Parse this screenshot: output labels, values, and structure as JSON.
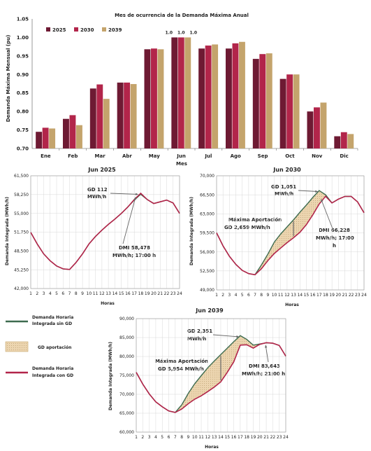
{
  "colors": {
    "c2025": "#6e1a33",
    "c2030": "#b2254a",
    "c2039": "#c4a46c",
    "green": "#3d6b4f",
    "red": "#b2254a",
    "fill": "#ecd5b0"
  },
  "chart_data": [
    {
      "type": "bar",
      "title": "Mes de ocurrencia de la Demanda Máxima Anual",
      "ylabel": "Demanda Máxima Mensual (pu)",
      "xlabel": "Mes",
      "ylim": [
        0.7,
        1.05
      ],
      "yticks": [
        "0.70",
        "0.75",
        "0.80",
        "0.85",
        "0.90",
        "0.95",
        "1.00",
        "1.05"
      ],
      "categories": [
        "Ene",
        "Feb",
        "Mar",
        "Abr",
        "May",
        "Jun",
        "Jul",
        "Ago",
        "Sep",
        "Oct",
        "Nov",
        "Dic"
      ],
      "series": [
        {
          "name": "2025",
          "values": [
            0.745,
            0.78,
            0.862,
            0.878,
            0.968,
            1.0,
            0.97,
            0.97,
            0.942,
            0.888,
            0.8,
            0.733
          ]
        },
        {
          "name": "2030",
          "values": [
            0.756,
            0.79,
            0.873,
            0.878,
            0.97,
            1.0,
            0.978,
            0.984,
            0.955,
            0.9,
            0.811,
            0.744
          ]
        },
        {
          "name": "2039",
          "values": [
            0.754,
            0.763,
            0.834,
            0.874,
            0.968,
            1.0,
            0.981,
            0.988,
            0.957,
            0.9,
            0.824,
            0.739
          ]
        }
      ],
      "data_labels": [
        "1.0",
        "1.0",
        "1.0"
      ],
      "legend": "top-left"
    },
    {
      "type": "line",
      "title": "Jun 2025",
      "ylabel": "Demanda Integrada (MWh/h)",
      "xlabel": "Horas",
      "x": [
        1,
        2,
        3,
        4,
        5,
        6,
        7,
        8,
        9,
        10,
        11,
        12,
        13,
        14,
        15,
        16,
        17,
        18,
        19,
        20,
        21,
        22,
        23,
        24
      ],
      "ylim": [
        42000,
        61500
      ],
      "yticks": [
        "42,000",
        "45,250",
        "48,500",
        "51,750",
        "55,000",
        "58,250",
        "61,500"
      ],
      "series": [
        {
          "values": [
            51700,
            49700,
            48000,
            46800,
            45900,
            45400,
            45300,
            46500,
            48000,
            49700,
            51000,
            52100,
            53100,
            54000,
            55000,
            56100,
            57300,
            58300,
            57400,
            56700,
            57000,
            57300,
            56800,
            55000
          ]
        },
        {
          "values": [
            51700,
            49700,
            48000,
            46800,
            45900,
            45400,
            45300,
            46500,
            48000,
            49700,
            51000,
            52100,
            53100,
            54000,
            55000,
            56100,
            57400,
            58478,
            57400,
            56700,
            57000,
            57300,
            56800,
            55000
          ]
        }
      ],
      "annotations": [
        {
          "text": "GD 112",
          "text2": "MWh/h"
        },
        {
          "text": "DMI 58,478",
          "text2": "MWh/h;  17:00 h"
        }
      ]
    },
    {
      "type": "line",
      "title": "Jun 2030",
      "ylabel": "Demanda Integrada (MWh/h)",
      "xlabel": "Horas",
      "x": [
        1,
        2,
        3,
        4,
        5,
        6,
        7,
        8,
        9,
        10,
        11,
        12,
        13,
        14,
        15,
        16,
        17,
        18,
        19,
        20,
        21,
        22,
        23,
        24
      ],
      "ylim": [
        49000,
        70000
      ],
      "yticks": [
        "49,000",
        "52,500",
        "56,000",
        "59,500",
        "63,000",
        "66,500",
        "70,000"
      ],
      "series": [
        {
          "name": "Demanda Horaria Integrada sin GD",
          "values": [
            59500,
            57100,
            55200,
            53700,
            52600,
            52000,
            51800,
            53600,
            55600,
            57800,
            59300,
            60600,
            61900,
            63300,
            64600,
            66000,
            67279,
            66500,
            65000,
            65700,
            66200,
            66200,
            65200,
            63200
          ]
        },
        {
          "name": "Demanda Horaria Integrada con GD",
          "values": [
            59500,
            57100,
            55200,
            53700,
            52600,
            52000,
            51800,
            52900,
            54400,
            55700,
            56700,
            57700,
            58600,
            59600,
            61000,
            62800,
            64800,
            66228,
            65000,
            65700,
            66200,
            66200,
            65200,
            63200
          ]
        }
      ],
      "annotations": [
        {
          "text": "GD 1,051",
          "text2": "MWh/h"
        },
        {
          "text": "Máxima Aportación",
          "text2": "GD 2,659 MWh/h"
        },
        {
          "text": "DMI 66,228",
          "text2": "MWh/h; 17:00",
          "text3": "h"
        }
      ]
    },
    {
      "type": "line",
      "title": "Jun 2039",
      "ylabel": "Demanda Integrada (MWh/h)",
      "xlabel": "Horas",
      "x": [
        1,
        2,
        3,
        4,
        5,
        6,
        7,
        8,
        9,
        10,
        11,
        12,
        13,
        14,
        15,
        16,
        17,
        18,
        19,
        20,
        21,
        22,
        23,
        24
      ],
      "ylim": [
        60000,
        90000
      ],
      "yticks": [
        "60,000",
        "65,000",
        "70,000",
        "75,000",
        "80,000",
        "85,000",
        "90,000"
      ],
      "series": [
        {
          "name": "Demanda Horaria Integrada sin GD",
          "values": [
            75800,
            72700,
            70100,
            68000,
            66700,
            65600,
            65200,
            67200,
            70200,
            72800,
            74900,
            77000,
            78800,
            80500,
            82200,
            83900,
            85500,
            84500,
            83000,
            83300,
            83600,
            83500,
            82900,
            80100
          ]
        },
        {
          "name": "Demanda Horaria Integrada con GD",
          "values": [
            75800,
            72700,
            70100,
            68000,
            66700,
            65600,
            65200,
            66100,
            67500,
            68700,
            69600,
            70700,
            71900,
            73300,
            75800,
            78600,
            83000,
            83100,
            82200,
            83200,
            83643,
            83500,
            82900,
            80100
          ]
        }
      ],
      "annotations": [
        {
          "text": "GD 2,351",
          "text2": "MWh/h"
        },
        {
          "text": "Máxima Aportación",
          "text2": "GD 5,954 MWh/h"
        },
        {
          "text": "DMI 83,643",
          "text2": "MWh/h; 21:00 h"
        }
      ]
    }
  ],
  "legend": {
    "sin_gd": [
      "Demanda Horaria",
      "Integrada sin GD"
    ],
    "aporte": "GD aportación",
    "con_gd": [
      "Demanda Horaria",
      "Integrada con GD"
    ]
  }
}
